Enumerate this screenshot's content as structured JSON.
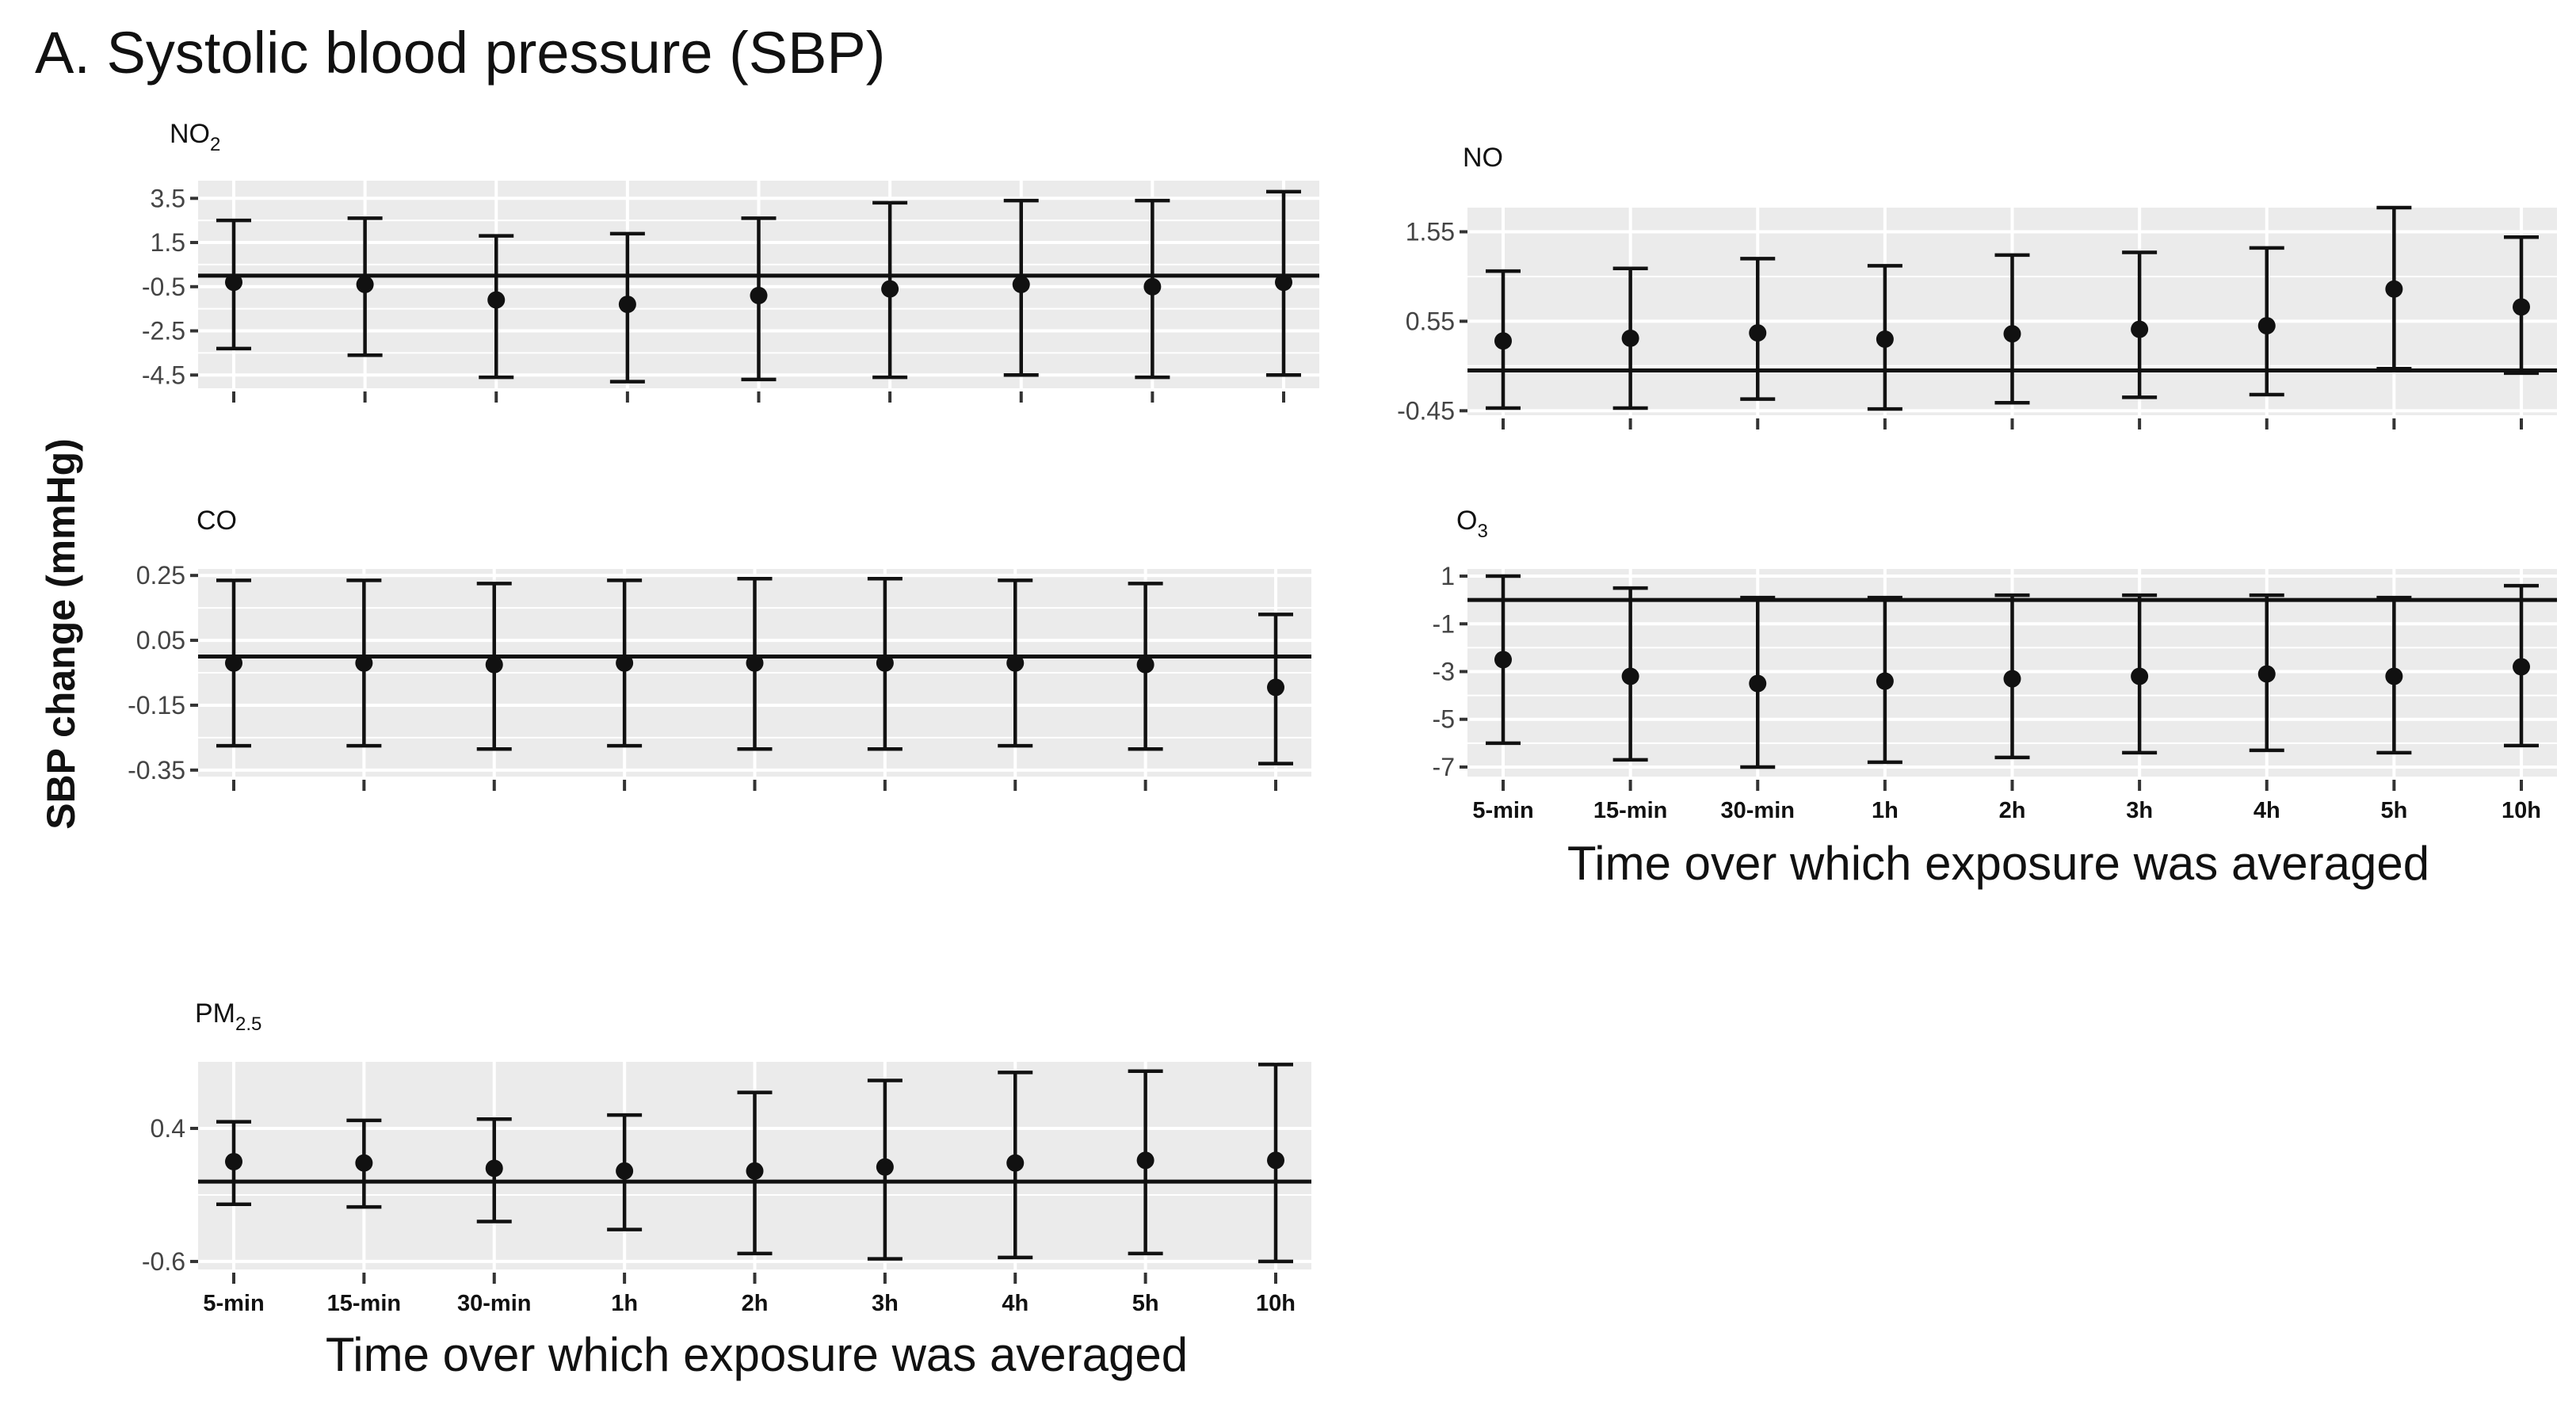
{
  "figure": {
    "title": "A. Systolic blood pressure (SBP)",
    "ylabel": "SBP change (mmHg)",
    "xlabel": "Time over which exposure was averaged"
  },
  "chart_data": [
    {
      "type": "scatter",
      "title": "NO",
      "title_sub": "2",
      "categories": [
        "5-min",
        "15-min",
        "30-min",
        "1h",
        "2h",
        "3h",
        "4h",
        "5h",
        "10h"
      ],
      "show_xtick_labels": false,
      "yticks": [
        "3.5",
        "1.5",
        "-0.5",
        "-2.5",
        "-4.5"
      ],
      "ytick_values": [
        3.5,
        1.5,
        -0.5,
        -2.5,
        -4.5
      ],
      "ylim": [
        -5.1,
        4.3
      ],
      "hline": 0,
      "series": [
        {
          "name": "NO2",
          "estimate": [
            -0.3,
            -0.4,
            -1.1,
            -1.3,
            -0.9,
            -0.6,
            -0.4,
            -0.5,
            -0.3
          ],
          "lower": [
            -3.3,
            -3.6,
            -4.6,
            -4.8,
            -4.7,
            -4.6,
            -4.5,
            -4.6,
            -4.5
          ],
          "upper": [
            2.5,
            2.6,
            1.8,
            1.9,
            2.6,
            3.3,
            3.4,
            3.4,
            3.8
          ]
        }
      ]
    },
    {
      "type": "scatter",
      "title": "NO",
      "title_sub": "",
      "categories": [
        "5-min",
        "15-min",
        "30-min",
        "1h",
        "2h",
        "3h",
        "4h",
        "5h",
        "10h"
      ],
      "show_xtick_labels": false,
      "yticks": [
        "1.55",
        "0.55",
        "-0.45"
      ],
      "ytick_values": [
        1.55,
        0.55,
        -0.45
      ],
      "ylim": [
        -0.5,
        1.82
      ],
      "hline": 0,
      "series": [
        {
          "name": "NO",
          "estimate": [
            0.33,
            0.36,
            0.42,
            0.35,
            0.41,
            0.46,
            0.5,
            0.91,
            0.71
          ],
          "lower": [
            -0.42,
            -0.42,
            -0.32,
            -0.43,
            -0.36,
            -0.3,
            -0.27,
            0.02,
            -0.03
          ],
          "upper": [
            1.11,
            1.14,
            1.25,
            1.17,
            1.29,
            1.32,
            1.37,
            1.82,
            1.49
          ]
        }
      ]
    },
    {
      "type": "scatter",
      "title": "CO",
      "title_sub": "",
      "categories": [
        "5-min",
        "15-min",
        "30-min",
        "1h",
        "2h",
        "3h",
        "4h",
        "5h",
        "10h"
      ],
      "show_xtick_labels": false,
      "yticks": [
        "0.25",
        "0.05",
        "-0.15",
        "-0.35"
      ],
      "ytick_values": [
        0.25,
        0.05,
        -0.15,
        -0.35
      ],
      "ylim": [
        -0.37,
        0.27
      ],
      "hline": 0,
      "series": [
        {
          "name": "CO",
          "estimate": [
            -0.02,
            -0.02,
            -0.025,
            -0.02,
            -0.02,
            -0.02,
            -0.02,
            -0.025,
            -0.095
          ],
          "lower": [
            -0.275,
            -0.275,
            -0.285,
            -0.275,
            -0.285,
            -0.285,
            -0.275,
            -0.285,
            -0.33
          ],
          "upper": [
            0.235,
            0.235,
            0.225,
            0.235,
            0.24,
            0.24,
            0.235,
            0.225,
            0.13
          ]
        }
      ]
    },
    {
      "type": "scatter",
      "title": "O",
      "title_sub": "3",
      "categories": [
        "5-min",
        "15-min",
        "30-min",
        "1h",
        "2h",
        "3h",
        "4h",
        "5h",
        "10h"
      ],
      "show_xtick_labels": true,
      "yticks": [
        "1",
        "-1",
        "-3",
        "-5",
        "-7"
      ],
      "ytick_values": [
        1,
        -1,
        -3,
        -5,
        -7
      ],
      "ylim": [
        -7.4,
        1.3
      ],
      "hline": 0,
      "series": [
        {
          "name": "O3",
          "estimate": [
            -2.5,
            -3.2,
            -3.5,
            -3.4,
            -3.3,
            -3.2,
            -3.1,
            -3.2,
            -2.8
          ],
          "lower": [
            -6.0,
            -6.7,
            -7.0,
            -6.8,
            -6.6,
            -6.4,
            -6.3,
            -6.4,
            -6.1
          ],
          "upper": [
            1.0,
            0.5,
            0.1,
            0.1,
            0.2,
            0.2,
            0.2,
            0.1,
            0.6
          ]
        }
      ]
    },
    {
      "type": "scatter",
      "title": "PM",
      "title_sub": "2.5",
      "categories": [
        "5-min",
        "15-min",
        "30-min",
        "1h",
        "2h",
        "3h",
        "4h",
        "5h",
        "10h"
      ],
      "show_xtick_labels": true,
      "yticks": [
        "0.4",
        "-0.6"
      ],
      "ytick_values": [
        0.4,
        -0.6
      ],
      "ylim": [
        -0.66,
        0.9
      ],
      "hline": 0,
      "series": [
        {
          "name": "PM2.5",
          "estimate": [
            0.15,
            0.14,
            0.1,
            0.08,
            0.08,
            0.11,
            0.14,
            0.16,
            0.16
          ],
          "lower": [
            -0.17,
            -0.19,
            -0.3,
            -0.36,
            -0.54,
            -0.58,
            -0.57,
            -0.54,
            -0.6
          ],
          "upper": [
            0.45,
            0.46,
            0.47,
            0.5,
            0.67,
            0.76,
            0.82,
            0.83,
            0.88
          ]
        }
      ]
    }
  ]
}
